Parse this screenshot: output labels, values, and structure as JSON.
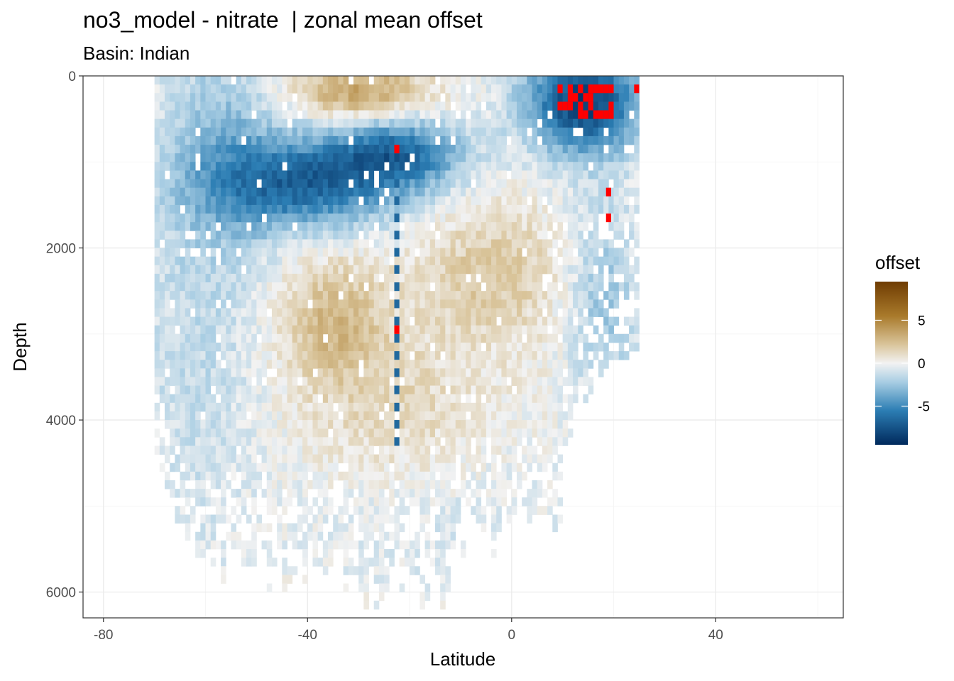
{
  "chart_data": {
    "type": "heatmap",
    "title": "no3_model - nitrate  | zonal mean offset",
    "subtitle": "Basin: Indian",
    "xlabel": "Latitude",
    "ylabel": "Depth",
    "xlim": [
      -84,
      65
    ],
    "ylim": [
      0,
      6300
    ],
    "y_reversed": true,
    "x_ticks": [
      -80,
      -40,
      0,
      40
    ],
    "x_tick_labels": [
      "-80",
      "-40",
      "0",
      "40"
    ],
    "y_ticks": [
      0,
      2000,
      4000,
      6000
    ],
    "y_tick_labels": [
      "0",
      "2000",
      "4000",
      "6000"
    ],
    "grid": true,
    "legend": {
      "title": "offset",
      "placement": "right",
      "ticks": [
        5,
        0,
        -5
      ],
      "tick_labels": [
        "5",
        "0",
        "-5"
      ],
      "range": [
        -9.5,
        9.5
      ],
      "out_of_range_color": "#FF0000"
    },
    "palette": {
      "low": "#00295C",
      "mid_low": "#2C7EB4",
      "light_low": "#A8CDE3",
      "mid": "#F2F2F2",
      "light_high": "#D9C49A",
      "high_mid": "#A97A2B",
      "high": "#6F3C02"
    },
    "features": {
      "sub_antarctic_negative_band": {
        "lat": [
          -55,
          -20
        ],
        "depth": [
          400,
          1700
        ],
        "value": -6
      },
      "surface_positive_core": {
        "lat": [
          -42,
          -13
        ],
        "depth": [
          0,
          600
        ],
        "value": 3.5
      },
      "deep_positive_core_south": {
        "lat": [
          -45,
          -25
        ],
        "depth": [
          2300,
          3600
        ],
        "value": 2.5
      },
      "mid_positive_core": {
        "lat": [
          -10,
          5
        ],
        "depth": [
          1800,
          2800
        ],
        "value": 2
      },
      "north_surface_negative": {
        "lat": [
          5,
          24
        ],
        "depth": [
          0,
          800
        ],
        "value": -7.5
      },
      "southern_weak_negative": {
        "lat": [
          -70,
          -55
        ],
        "depth": [
          200,
          5000
        ],
        "value": -1.5
      },
      "red_out_of_range_cells": [
        {
          "lat": -22.5,
          "depth": 850
        },
        {
          "lat": -22.5,
          "depth": 2950
        },
        {
          "lat": 19.0,
          "depth": 1350
        },
        {
          "lat": 19.0,
          "depth": 1650
        },
        {
          "lat": 24.5,
          "depth": 150
        }
      ]
    }
  }
}
